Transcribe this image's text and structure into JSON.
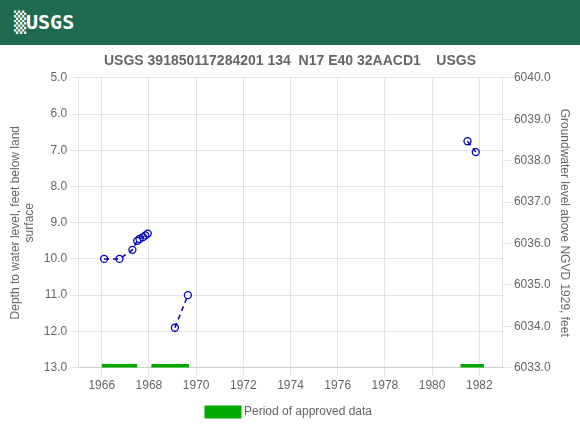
{
  "chart_data": {
    "type": "line",
    "title": "USGS 391850117284201 134  N17 E40 32AACD1    USGS",
    "annotations": [
      {
        "text": "▒USGS",
        "color": "#1e6b52"
      }
    ],
    "y_label": "Depth to water level, feet below land\nsurface",
    "y2_label": "Groundwater level above NGVD 1929, feet",
    "xlim": [
      1965.0,
      1983.0
    ],
    "xticks": [
      1966,
      1968,
      1970,
      1972,
      1974,
      1976,
      1978,
      1980,
      1982
    ],
    "ylim": [
      13.0,
      5.0
    ],
    "yticks": [
      {
        "value": 5.0,
        "label": "5.0"
      },
      {
        "value": 6.0,
        "label": "6.0"
      },
      {
        "value": 7.0,
        "label": "7.0"
      },
      {
        "value": 8.0,
        "label": "8.0"
      },
      {
        "value": 9.0,
        "label": "9.0"
      },
      {
        "value": 10.0,
        "label": "10.0"
      },
      {
        "value": 11.0,
        "label": "11.0"
      },
      {
        "value": 12.0,
        "label": "12.0"
      },
      {
        "value": 13.0,
        "label": "13.0"
      }
    ],
    "y2lim": [
      6033.0,
      6040.0
    ],
    "y2ticks": [
      {
        "value": 6040.0,
        "label": "6040.0"
      },
      {
        "value": 6039.0,
        "label": "6039.0"
      },
      {
        "value": 6038.0,
        "label": "6038.0"
      },
      {
        "value": 6037.0,
        "label": "6037.0"
      },
      {
        "value": 6036.0,
        "label": "6036.0"
      },
      {
        "value": 6035.0,
        "label": "6035.0"
      },
      {
        "value": 6034.0,
        "label": "6034.0"
      },
      {
        "value": 6033.0,
        "label": "6033.0"
      }
    ],
    "grid": true,
    "legend": "bottom",
    "series": [
      {
        "x": [
          1966.1,
          1966.75,
          1967.3,
          1967.5,
          1967.6,
          1967.75,
          1967.85,
          1967.95
        ],
        "values": [
          10.0,
          10.0,
          9.75,
          9.5,
          9.45,
          9.4,
          9.35,
          9.3
        ],
        "color": "#0000bb",
        "line_style": "dashed",
        "marker": "circle"
      },
      {
        "x": [
          1969.1,
          1969.65
        ],
        "values": [
          11.9,
          11.0
        ],
        "color": "#0000bb",
        "line_style": "dashed",
        "marker": "circle"
      },
      {
        "x": [
          1981.5,
          1981.85
        ],
        "values": [
          6.75,
          7.05
        ],
        "color": "#0000bb",
        "line_style": "dashed",
        "marker": "circle"
      },
      {
        "name": "Period of approved data",
        "type": "bar",
        "orientation": "horizontal",
        "color": "#00aa00",
        "x": [
          [
            1966.0,
            1967.5
          ],
          [
            1968.1,
            1969.7
          ],
          [
            1981.2,
            1982.2
          ]
        ],
        "values": [
          13.0,
          13.0,
          13.0
        ]
      }
    ]
  }
}
